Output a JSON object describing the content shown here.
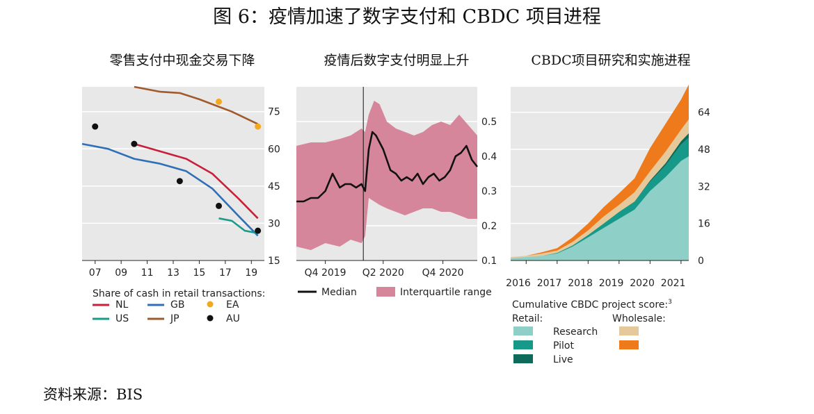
{
  "figure": {
    "title": "图 6：疫情加速了数字支付和 CBDC 项目进程",
    "source": "资料来源：BIS"
  },
  "chart_data": [
    {
      "type": "line",
      "panel_title": "零售支付中现金交易下降",
      "x_ticks": [
        "07",
        "09",
        "11",
        "13",
        "15",
        "17",
        "19"
      ],
      "y_ticks": [
        "15",
        "30",
        "45",
        "60",
        "75"
      ],
      "ylim": [
        15,
        85
      ],
      "xlim": [
        2006,
        2020
      ],
      "legend_title": "Share of cash in retail transactions:",
      "series": [
        {
          "name": "NL",
          "color": "#c8203a",
          "kind": "line",
          "x": [
            2010,
            2012,
            2014,
            2016,
            2018,
            2019.5
          ],
          "y": [
            62,
            59,
            56,
            50,
            40,
            32
          ]
        },
        {
          "name": "GB",
          "color": "#2f6fb6",
          "kind": "line",
          "x": [
            2006,
            2008,
            2010,
            2012,
            2014,
            2016,
            2018,
            2019.5
          ],
          "y": [
            62,
            60,
            56,
            54,
            51,
            44,
            33,
            25
          ]
        },
        {
          "name": "US",
          "color": "#1a9a8a",
          "kind": "line",
          "x": [
            2016.5,
            2017.5,
            2018.5,
            2019.5
          ],
          "y": [
            32,
            31,
            27,
            26
          ]
        },
        {
          "name": "JP",
          "color": "#a05a2c",
          "kind": "line",
          "x": [
            2010,
            2012,
            2013.5,
            2015,
            2016.5,
            2017.5,
            2019.5
          ],
          "y": [
            85,
            83,
            82.5,
            80,
            77,
            75,
            70
          ]
        },
        {
          "name": "EA",
          "color": "#f2a91f",
          "kind": "point",
          "x": [
            2016.5,
            2019.5
          ],
          "y": [
            79,
            69
          ]
        },
        {
          "name": "AU",
          "color": "#111111",
          "kind": "point",
          "x": [
            2007,
            2010,
            2013.5,
            2016.5,
            2019.5
          ],
          "y": [
            69,
            62,
            47,
            37,
            27
          ]
        }
      ]
    },
    {
      "type": "area",
      "panel_title": "疫情后数字支付明显上升",
      "x_ticks": [
        "Q4 2019",
        "Q2 2020",
        "Q4 2020"
      ],
      "y_ticks": [
        "0.1",
        "0.2",
        "0.3",
        "0.4",
        "0.5"
      ],
      "ylim": [
        0.1,
        0.6
      ],
      "xlim": [
        0,
        100
      ],
      "tick_x": [
        16,
        48,
        81
      ],
      "vline_x": 37,
      "series": [
        {
          "name": "Median",
          "color": "#111111",
          "kind": "line",
          "x": [
            0,
            4,
            8,
            12,
            16,
            20,
            24,
            27,
            30,
            33,
            36,
            38,
            40,
            42,
            44,
            46,
            48,
            50,
            52,
            55,
            58,
            61,
            64,
            67,
            70,
            73,
            76,
            79,
            82,
            85,
            88,
            91,
            94,
            97,
            100
          ],
          "y": [
            0.27,
            0.27,
            0.28,
            0.28,
            0.3,
            0.35,
            0.31,
            0.32,
            0.32,
            0.31,
            0.32,
            0.3,
            0.42,
            0.47,
            0.46,
            0.44,
            0.42,
            0.39,
            0.36,
            0.35,
            0.33,
            0.34,
            0.33,
            0.35,
            0.32,
            0.34,
            0.35,
            0.33,
            0.34,
            0.36,
            0.4,
            0.41,
            0.43,
            0.39,
            0.37
          ]
        },
        {
          "name": "Interquartile range",
          "color": "#d6869a",
          "kind": "band",
          "x": [
            0,
            8,
            16,
            24,
            30,
            36,
            38,
            40,
            43,
            46,
            50,
            55,
            60,
            65,
            70,
            75,
            80,
            85,
            90,
            95,
            100
          ],
          "upper": [
            0.43,
            0.44,
            0.44,
            0.45,
            0.46,
            0.48,
            0.47,
            0.52,
            0.56,
            0.55,
            0.5,
            0.48,
            0.47,
            0.46,
            0.47,
            0.49,
            0.5,
            0.49,
            0.52,
            0.49,
            0.46
          ],
          "lower": [
            0.14,
            0.13,
            0.15,
            0.14,
            0.16,
            0.15,
            0.17,
            0.28,
            0.27,
            0.26,
            0.25,
            0.24,
            0.23,
            0.24,
            0.25,
            0.25,
            0.24,
            0.24,
            0.23,
            0.22,
            0.22
          ]
        }
      ]
    },
    {
      "type": "area",
      "panel_title": "CBDC项目研究和实施进程",
      "x_ticks": [
        "2016",
        "2017",
        "2018",
        "2019",
        "2020",
        "2021"
      ],
      "y_ticks": [
        "0",
        "16",
        "32",
        "48",
        "64"
      ],
      "ylim": [
        0,
        75
      ],
      "xlim": [
        2015.5,
        2021.25
      ],
      "legend_title": "Cumulative CBDC project score:",
      "legend_title_sup": "3",
      "legend_retail": "Retail:",
      "legend_wholesale": "Wholesale:",
      "series": [
        {
          "name": "Research",
          "color": "#8ecfc7",
          "stack": "retail",
          "x": [
            2015.5,
            2016,
            2016.5,
            2017,
            2017.5,
            2018,
            2018.5,
            2019,
            2019.5,
            2020,
            2020.5,
            2021,
            2021.25
          ],
          "y": [
            1,
            1.5,
            2,
            3,
            6,
            10,
            14,
            18,
            22,
            30,
            36,
            43,
            45
          ]
        },
        {
          "name": "Pilot",
          "color": "#17998a",
          "stack": "retail",
          "x": [
            2015.5,
            2016,
            2016.5,
            2017,
            2017.5,
            2018,
            2018.5,
            2019,
            2019.5,
            2020,
            2020.5,
            2021,
            2021.25
          ],
          "y": [
            0,
            0,
            0,
            0.3,
            0.5,
            1,
            2,
            3,
            3.5,
            4,
            5,
            7,
            8
          ]
        },
        {
          "name": "Live",
          "color": "#0e6a5a",
          "stack": "retail",
          "x": [
            2015.5,
            2016,
            2016.5,
            2017,
            2017.5,
            2018,
            2018.5,
            2019,
            2019.5,
            2020,
            2020.5,
            2021,
            2021.25
          ],
          "y": [
            0,
            0,
            0,
            0,
            0,
            0,
            0,
            0,
            0,
            0.5,
            1,
            1.5,
            2
          ]
        },
        {
          "name": "Wholesale research",
          "color": "#e6c99a",
          "stack": "wholesale",
          "x": [
            2015.5,
            2016,
            2016.5,
            2017,
            2017.5,
            2018,
            2018.5,
            2019,
            2019.5,
            2020,
            2020.5,
            2021,
            2021.25
          ],
          "y": [
            0.5,
            0.5,
            1,
            1,
            1.5,
            2,
            3,
            3,
            4,
            4,
            5,
            5,
            6
          ]
        },
        {
          "name": "Wholesale pilot",
          "color": "#ee7a1c",
          "stack": "wholesale",
          "x": [
            2015.5,
            2016,
            2016.5,
            2017,
            2017.5,
            2018,
            2018.5,
            2019,
            2019.5,
            2020,
            2020.5,
            2021,
            2021.25
          ],
          "y": [
            0,
            0,
            0.5,
            1,
            2,
            3,
            4,
            5,
            6,
            10,
            12,
            13,
            15
          ]
        }
      ]
    }
  ]
}
